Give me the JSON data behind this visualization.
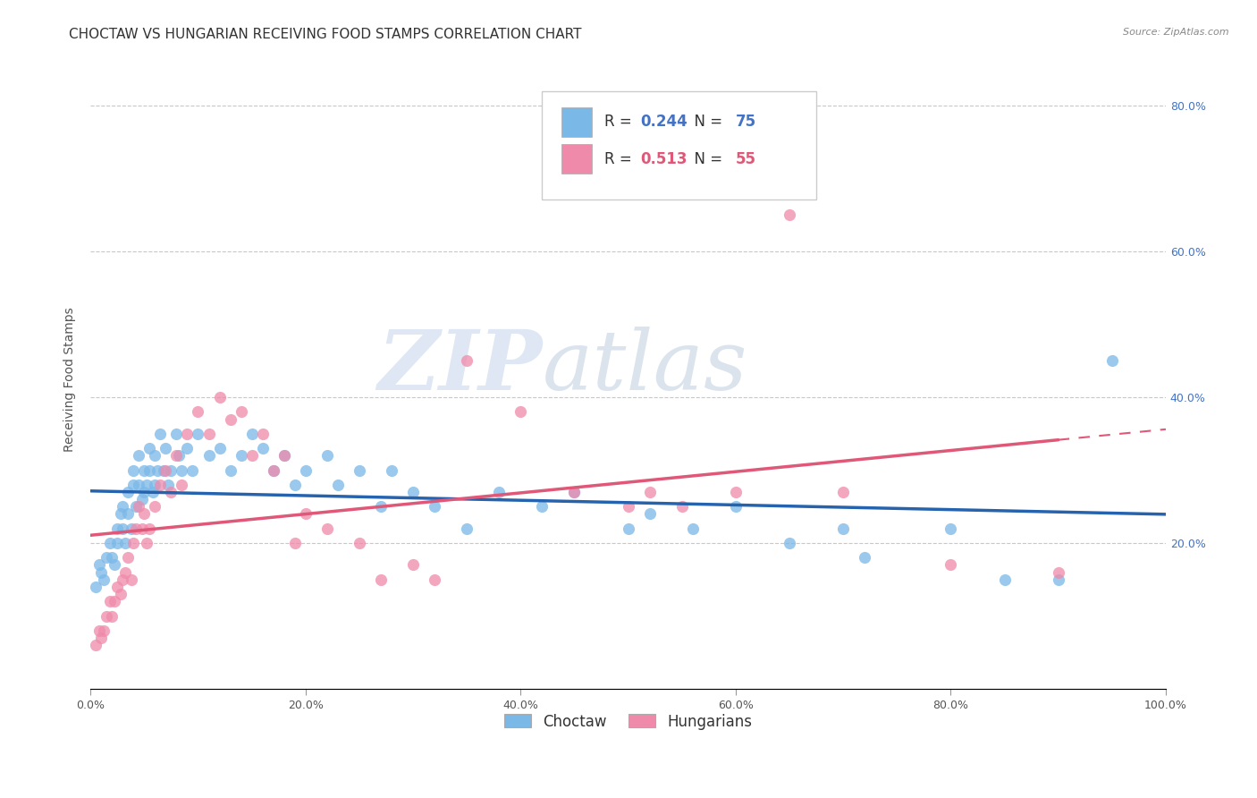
{
  "title": "CHOCTAW VS HUNGARIAN RECEIVING FOOD STAMPS CORRELATION CHART",
  "source": "Source: ZipAtlas.com",
  "ylabel": "Receiving Food Stamps",
  "xlim": [
    0,
    1.0
  ],
  "ylim": [
    0,
    0.85
  ],
  "choctaw_color": "#7ab8e8",
  "hungarian_color": "#f08aaa",
  "choctaw_line_color": "#2563ae",
  "hungarian_line_color": "#e05878",
  "choctaw_R": "0.244",
  "choctaw_N": "75",
  "hungarian_R": "0.513",
  "hungarian_N": "55",
  "background_color": "#ffffff",
  "grid_color": "#c8c8c8",
  "right_yticks": [
    0.2,
    0.4,
    0.6,
    0.8
  ],
  "right_yticklabels": [
    "20.0%",
    "40.0%",
    "60.0%",
    "80.0%"
  ],
  "xticks": [
    0.0,
    0.2,
    0.4,
    0.6,
    0.8,
    1.0
  ],
  "xticklabels": [
    "0.0%",
    "20.0%",
    "40.0%",
    "60.0%",
    "80.0%",
    "100.0%"
  ],
  "choctaw_x": [
    0.005,
    0.008,
    0.01,
    0.012,
    0.015,
    0.018,
    0.02,
    0.022,
    0.025,
    0.025,
    0.028,
    0.03,
    0.03,
    0.032,
    0.035,
    0.035,
    0.038,
    0.04,
    0.04,
    0.042,
    0.045,
    0.045,
    0.048,
    0.05,
    0.05,
    0.052,
    0.055,
    0.055,
    0.058,
    0.06,
    0.06,
    0.062,
    0.065,
    0.068,
    0.07,
    0.072,
    0.075,
    0.08,
    0.082,
    0.085,
    0.09,
    0.095,
    0.1,
    0.11,
    0.12,
    0.13,
    0.14,
    0.15,
    0.16,
    0.17,
    0.18,
    0.19,
    0.2,
    0.22,
    0.23,
    0.25,
    0.27,
    0.28,
    0.3,
    0.32,
    0.35,
    0.38,
    0.42,
    0.45,
    0.5,
    0.52,
    0.56,
    0.6,
    0.65,
    0.7,
    0.72,
    0.8,
    0.85,
    0.9,
    0.95
  ],
  "choctaw_y": [
    0.14,
    0.17,
    0.16,
    0.15,
    0.18,
    0.2,
    0.18,
    0.17,
    0.22,
    0.2,
    0.24,
    0.25,
    0.22,
    0.2,
    0.27,
    0.24,
    0.22,
    0.3,
    0.28,
    0.25,
    0.32,
    0.28,
    0.26,
    0.3,
    0.27,
    0.28,
    0.33,
    0.3,
    0.27,
    0.32,
    0.28,
    0.3,
    0.35,
    0.3,
    0.33,
    0.28,
    0.3,
    0.35,
    0.32,
    0.3,
    0.33,
    0.3,
    0.35,
    0.32,
    0.33,
    0.3,
    0.32,
    0.35,
    0.33,
    0.3,
    0.32,
    0.28,
    0.3,
    0.32,
    0.28,
    0.3,
    0.25,
    0.3,
    0.27,
    0.25,
    0.22,
    0.27,
    0.25,
    0.27,
    0.22,
    0.24,
    0.22,
    0.25,
    0.2,
    0.22,
    0.18,
    0.22,
    0.15,
    0.15,
    0.45
  ],
  "hungarian_x": [
    0.005,
    0.008,
    0.01,
    0.012,
    0.015,
    0.018,
    0.02,
    0.022,
    0.025,
    0.028,
    0.03,
    0.032,
    0.035,
    0.038,
    0.04,
    0.042,
    0.045,
    0.048,
    0.05,
    0.052,
    0.055,
    0.06,
    0.065,
    0.07,
    0.075,
    0.08,
    0.085,
    0.09,
    0.1,
    0.11,
    0.12,
    0.13,
    0.14,
    0.15,
    0.16,
    0.17,
    0.18,
    0.19,
    0.2,
    0.22,
    0.25,
    0.27,
    0.3,
    0.32,
    0.35,
    0.4,
    0.45,
    0.5,
    0.52,
    0.55,
    0.6,
    0.65,
    0.7,
    0.8,
    0.9
  ],
  "hungarian_y": [
    0.06,
    0.08,
    0.07,
    0.08,
    0.1,
    0.12,
    0.1,
    0.12,
    0.14,
    0.13,
    0.15,
    0.16,
    0.18,
    0.15,
    0.2,
    0.22,
    0.25,
    0.22,
    0.24,
    0.2,
    0.22,
    0.25,
    0.28,
    0.3,
    0.27,
    0.32,
    0.28,
    0.35,
    0.38,
    0.35,
    0.4,
    0.37,
    0.38,
    0.32,
    0.35,
    0.3,
    0.32,
    0.2,
    0.24,
    0.22,
    0.2,
    0.15,
    0.17,
    0.15,
    0.45,
    0.38,
    0.27,
    0.25,
    0.27,
    0.25,
    0.27,
    0.65,
    0.27,
    0.17,
    0.16
  ],
  "watermark_zip": "ZIP",
  "watermark_atlas": "atlas",
  "title_fontsize": 11,
  "axis_label_fontsize": 10,
  "tick_fontsize": 9,
  "legend_fontsize": 12
}
